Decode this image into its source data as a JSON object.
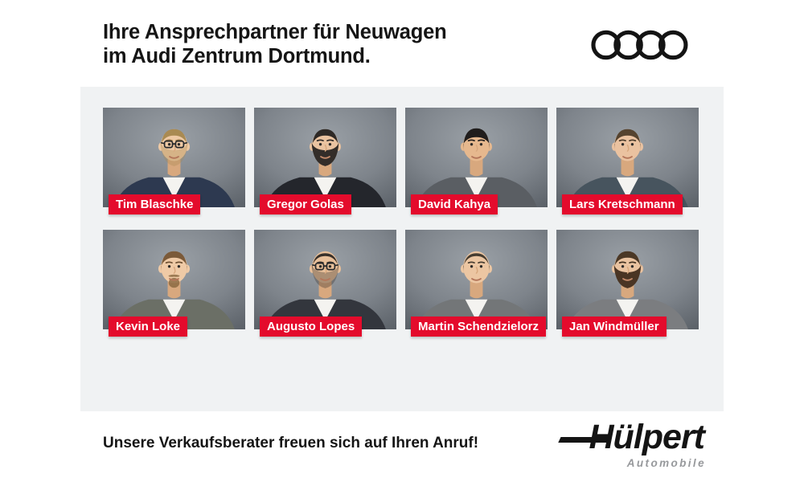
{
  "header": {
    "title_line1": "Ihre Ansprechpartner für Neuwagen",
    "title_line2": "im Audi Zentrum Dortmund.",
    "brand_logo": "audi-rings"
  },
  "people": [
    {
      "name": "Tim Blaschke",
      "features": {
        "hair_style": "short",
        "hair_color": "#a98a52",
        "brow_color": "#8a6c3e",
        "beard": "stubble",
        "beard_color": "#a98a52",
        "glasses": true,
        "suit": "#2d3950",
        "skin": "#eec9a4"
      }
    },
    {
      "name": "Gregor Golas",
      "features": {
        "hair_style": "short",
        "hair_color": "#2e2926",
        "brow_color": "#2e2926",
        "beard": "full",
        "beard_color": "#332d29",
        "glasses": false,
        "suit": "#24262c",
        "skin": "#eac3a0"
      }
    },
    {
      "name": "David Kahya",
      "features": {
        "hair_style": "slick",
        "hair_color": "#201d1c",
        "brow_color": "#201d1c",
        "beard": "none",
        "beard_color": "#201d1c",
        "glasses": false,
        "suit": "#5a5e63",
        "skin": "#e6b88e"
      }
    },
    {
      "name": "Lars Kretschmann",
      "features": {
        "hair_style": "short",
        "hair_color": "#55432f",
        "brow_color": "#4a3a29",
        "beard": "none",
        "beard_color": "#55432f",
        "glasses": false,
        "suit": "#47545e",
        "skin": "#eac2a0"
      }
    },
    {
      "name": "Kevin Loke",
      "features": {
        "hair_style": "short",
        "hair_color": "#7b5a39",
        "brow_color": "#6b4e31",
        "beard": "goatee",
        "beard_color": "#87653f",
        "glasses": false,
        "suit": "#6b6f66",
        "skin": "#efcaa6"
      }
    },
    {
      "name": "Augusto Lopes",
      "features": {
        "hair_style": "receding",
        "hair_color": "#38302a",
        "brow_color": "#38302a",
        "beard": "stubble",
        "beard_color": "#38302a",
        "glasses": true,
        "suit": "#33363d",
        "skin": "#e9c09a"
      }
    },
    {
      "name": "Martin Schendzielorz",
      "features": {
        "hair_style": "receding",
        "hair_color": "#463c30",
        "brow_color": "#463c30",
        "beard": "none",
        "beard_color": "#463c30",
        "glasses": false,
        "suit": "#737678",
        "skin": "#ecc6a2"
      }
    },
    {
      "name": "Jan Windmüller",
      "features": {
        "hair_style": "short",
        "hair_color": "#4b3826",
        "brow_color": "#41301f",
        "beard": "full",
        "beard_color": "#4a3524",
        "glasses": false,
        "suit": "#7b7d80",
        "skin": "#eac3a0"
      }
    }
  ],
  "footer": {
    "message": "Unsere Verkaufsberater freuen sich auf Ihren Anruf!",
    "dealer_logo": {
      "wordmark": "Hülpert",
      "subtitle": "Automobile"
    }
  },
  "colors": {
    "accent_red": "#e40b2c",
    "panel_bg": "#f0f2f3",
    "text_ink": "#151515",
    "logo_black": "#141414",
    "automobile_gray": "#97999c",
    "photo_bg_center": "#9aa0a6",
    "photo_bg_mid": "#7e848b",
    "photo_bg_edge": "#595f66"
  }
}
